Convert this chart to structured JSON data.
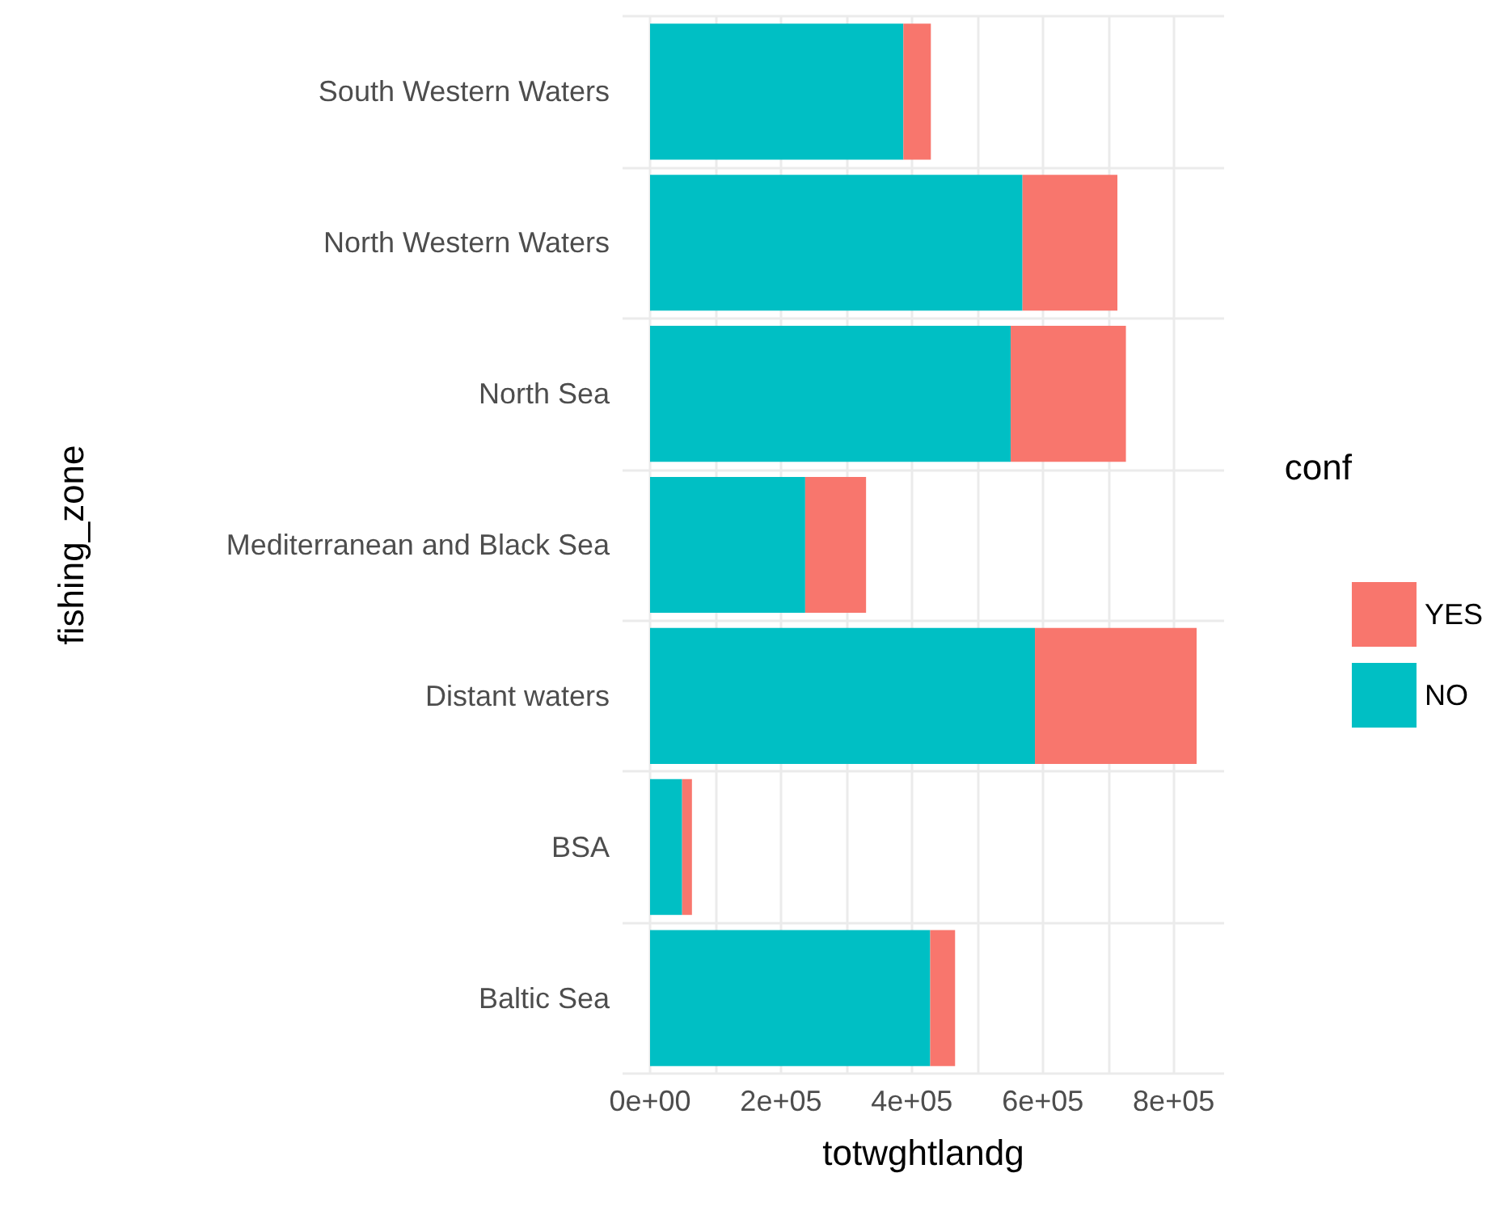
{
  "chart_data": {
    "type": "bar",
    "orientation": "horizontal",
    "stacked": true,
    "xlabel": "totwghtlandg",
    "ylabel": "fishing_zone",
    "legend_title": "conf",
    "legend": "right",
    "categories": [
      "South Western Waters",
      "North Western Waters",
      "North Sea",
      "Mediterranean and Black Sea",
      "Distant waters",
      "BSA",
      "Baltic Sea"
    ],
    "series": [
      {
        "name": "NO",
        "color": "#00bfc4",
        "values": [
          387000,
          569000,
          551000,
          237000,
          588000,
          49000,
          428000
        ]
      },
      {
        "name": "YES",
        "color": "#f8766d",
        "values": [
          42000,
          145000,
          176000,
          93000,
          247000,
          15000,
          38000
        ]
      }
    ],
    "xlim": [
      -42000,
      877000
    ],
    "xticks": [
      {
        "value": 0,
        "label": "0e+00"
      },
      {
        "value": 100000,
        "label": null
      },
      {
        "value": 200000,
        "label": "2e+05"
      },
      {
        "value": 300000,
        "label": null
      },
      {
        "value": 400000,
        "label": "4e+05"
      },
      {
        "value": 500000,
        "label": null
      },
      {
        "value": 600000,
        "label": "6e+05"
      },
      {
        "value": 700000,
        "label": null
      },
      {
        "value": 800000,
        "label": "8e+05"
      }
    ],
    "grid": true
  }
}
